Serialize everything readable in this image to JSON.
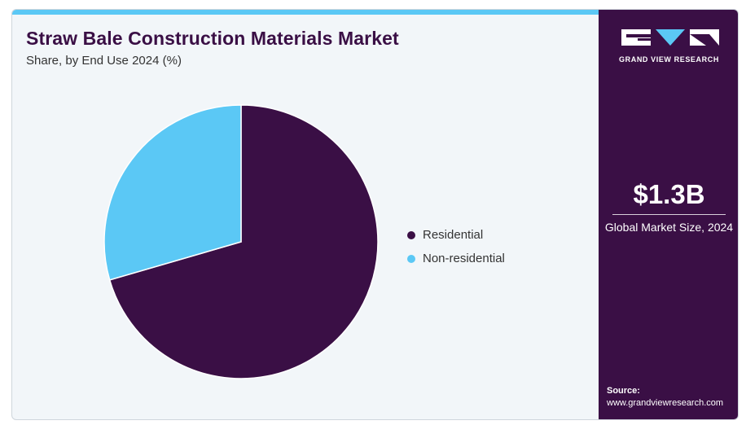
{
  "header": {
    "title": "Straw Bale Construction Materials Market",
    "subtitle": "Share, by End Use 2024 (%)"
  },
  "chart_data": {
    "type": "pie",
    "title": "Straw Bale Construction Materials Market",
    "subtitle": "Share, by End Use 2024 (%)",
    "categories": [
      "Residential",
      "Non-residential"
    ],
    "values": [
      70.5,
      29.5
    ],
    "colors": [
      "#3a0f45",
      "#5bc8f5"
    ],
    "legend": "right"
  },
  "sidebar": {
    "brand": "GRAND VIEW RESEARCH",
    "market_size": "$1.3B",
    "market_size_label": "Global Market Size, 2024",
    "source_label": "Source:",
    "source_url": "www.grandviewresearch.com"
  }
}
